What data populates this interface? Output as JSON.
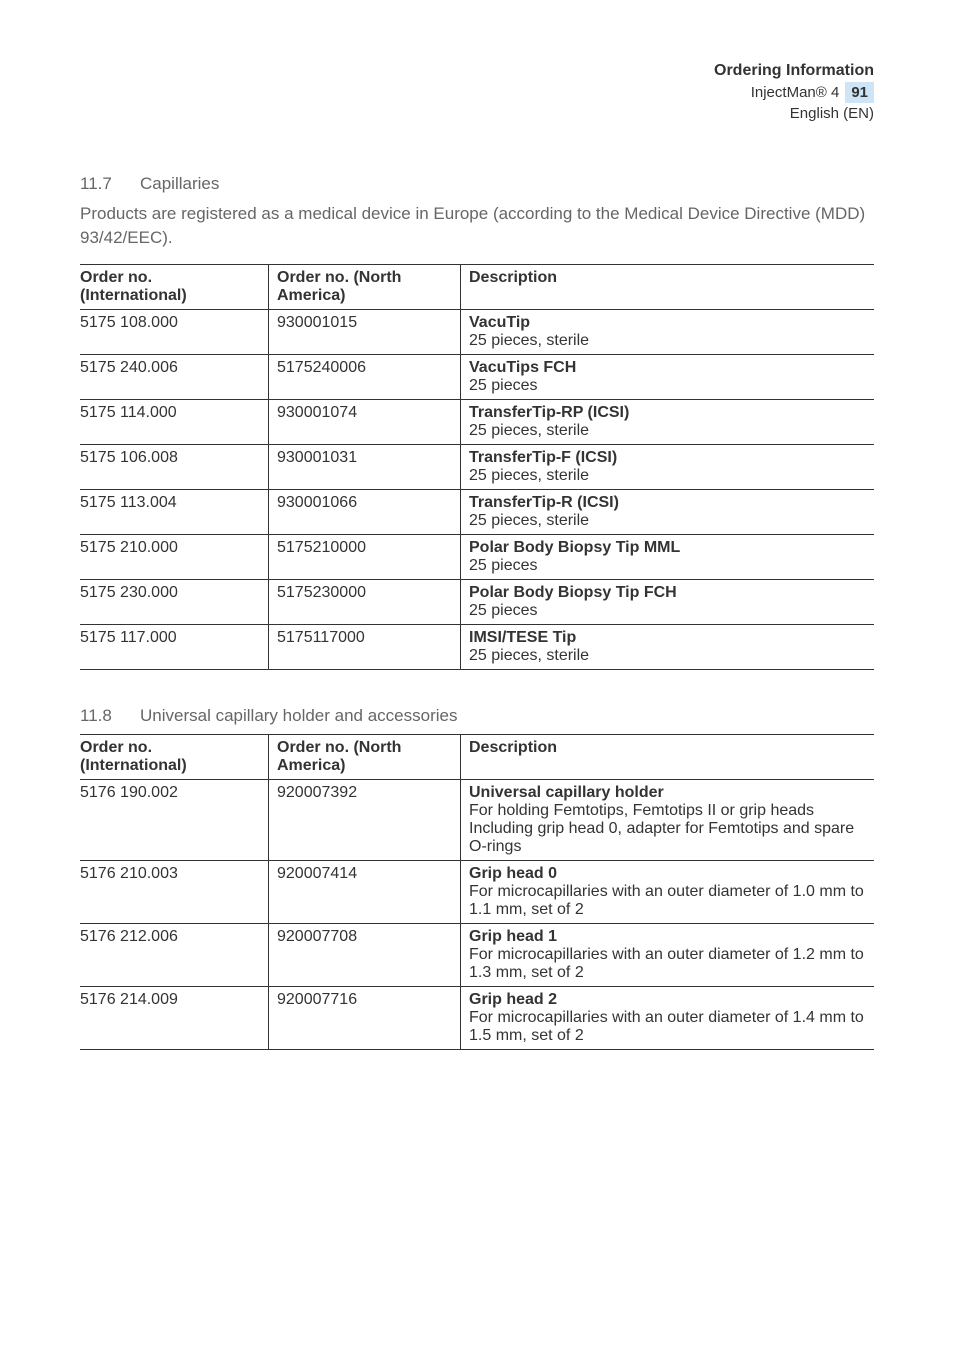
{
  "header": {
    "title": "Ordering Information",
    "product": "InjectMan® 4",
    "page_number": "91",
    "lang": "English (EN)"
  },
  "section1": {
    "number": "11.7",
    "title": "Capillaries",
    "intro": "Products are registered as a medical device in Europe (according to the Medical Device Directive (MDD) 93/42/EEC).",
    "columns": {
      "c1a": "Order no.",
      "c1b": "(International)",
      "c2a": "Order no. (North",
      "c2b": "America)",
      "c3": "Description"
    },
    "rows": [
      {
        "intl": "5175 108.000",
        "na": "930001015",
        "title": "VacuTip",
        "detail": "25 pieces, sterile"
      },
      {
        "intl": "5175 240.006",
        "na": "5175240006",
        "title": "VacuTips FCH",
        "detail": "25 pieces"
      },
      {
        "intl": "5175 114.000",
        "na": "930001074",
        "title": "TransferTip-RP (ICSI)",
        "detail": "25 pieces, sterile"
      },
      {
        "intl": "5175 106.008",
        "na": "930001031",
        "title": "TransferTip-F (ICSI)",
        "detail": "25 pieces, sterile"
      },
      {
        "intl": "5175 113.004",
        "na": "930001066",
        "title": "TransferTip-R (ICSI)",
        "detail": "25 pieces, sterile"
      },
      {
        "intl": "5175 210.000",
        "na": "5175210000",
        "title": "Polar Body Biopsy Tip MML",
        "detail": "25 pieces"
      },
      {
        "intl": "5175 230.000",
        "na": "5175230000",
        "title": "Polar Body Biopsy Tip FCH",
        "detail": "25 pieces"
      },
      {
        "intl": "5175 117.000",
        "na": "5175117000",
        "title": "IMSI/TESE Tip",
        "detail": "25 pieces, sterile"
      }
    ]
  },
  "section2": {
    "number": "11.8",
    "title": "Universal capillary holder and accessories",
    "columns": {
      "c1a": "Order no.",
      "c1b": "(International)",
      "c2a": "Order no. (North",
      "c2b": "America)",
      "c3": "Description"
    },
    "rows": [
      {
        "intl": "5176 190.002",
        "na": "920007392",
        "title": "Universal capillary holder",
        "detail": "For holding Femtotips, Femtotips II or grip heads\nIncluding grip head 0, adapter for Femtotips and spare O-rings"
      },
      {
        "intl": "5176 210.003",
        "na": "920007414",
        "title": "Grip head 0",
        "detail": "For microcapillaries with an outer diameter of 1.0 mm to 1.1 mm, set of 2"
      },
      {
        "intl": "5176 212.006",
        "na": "920007708",
        "title": "Grip head 1",
        "detail": "For microcapillaries with an outer diameter of 1.2 mm to 1.3 mm, set of 2"
      },
      {
        "intl": "5176 214.009",
        "na": "920007716",
        "title": "Grip head 2",
        "detail": "For microcapillaries with an outer diameter of 1.4 mm to 1.5 mm, set of 2"
      }
    ]
  }
}
